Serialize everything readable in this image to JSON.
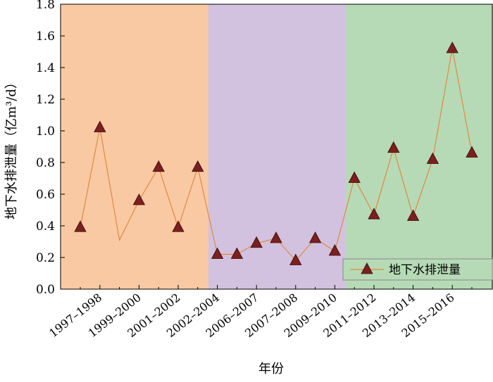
{
  "chart_data": {
    "type": "line",
    "xlabel": "年份",
    "ylabel": "地下水排泄量（亿m³/d）",
    "ylim": [
      0,
      1.8
    ],
    "yticks": [
      "0.0",
      "0.2",
      "0.4",
      "0.6",
      "0.8",
      "1.0",
      "1.2",
      "1.4",
      "1.6",
      "1.8"
    ],
    "x_tick_labels": [
      "1997–1998",
      "1999–2000",
      "2001–2002",
      "2002–2004",
      "2006–2007",
      "2007–2008",
      "2009–2010",
      "2011–2012",
      "2013–2014",
      "2015–2016"
    ],
    "series": [
      {
        "name": "地下水排泄量",
        "color": "#7B1F1F",
        "line_color": "#E08A3C",
        "marker": "triangle",
        "points": [
          {
            "x": 0,
            "y": 0.39,
            "marker": true
          },
          {
            "x": 1,
            "y": 1.02,
            "marker": true
          },
          {
            "x": 2,
            "y": 0.31,
            "marker": false
          },
          {
            "x": 3,
            "y": 0.56,
            "marker": true
          },
          {
            "x": 4,
            "y": 0.77,
            "marker": true
          },
          {
            "x": 5,
            "y": 0.39,
            "marker": true
          },
          {
            "x": 6,
            "y": 0.77,
            "marker": true
          },
          {
            "x": 7,
            "y": 0.22,
            "marker": true
          },
          {
            "x": 8,
            "y": 0.22,
            "marker": true
          },
          {
            "x": 9,
            "y": 0.29,
            "marker": true
          },
          {
            "x": 10,
            "y": 0.32,
            "marker": true
          },
          {
            "x": 11,
            "y": 0.18,
            "marker": true
          },
          {
            "x": 12,
            "y": 0.32,
            "marker": true
          },
          {
            "x": 13,
            "y": 0.24,
            "marker": true
          },
          {
            "x": 14,
            "y": 0.7,
            "marker": true
          },
          {
            "x": 15,
            "y": 0.47,
            "marker": true
          },
          {
            "x": 16,
            "y": 0.89,
            "marker": true
          },
          {
            "x": 17,
            "y": 0.46,
            "marker": true
          },
          {
            "x": 18,
            "y": 0.82,
            "marker": true
          },
          {
            "x": 19,
            "y": 1.52,
            "marker": true
          },
          {
            "x": 20,
            "y": 0.86,
            "marker": true
          }
        ]
      }
    ],
    "background_bands": [
      {
        "color": "#F9C9A4"
      },
      {
        "color": "#D2C2DF"
      },
      {
        "color": "#B6DAB6"
      }
    ],
    "legend_position": "lower-right",
    "grid": false
  }
}
